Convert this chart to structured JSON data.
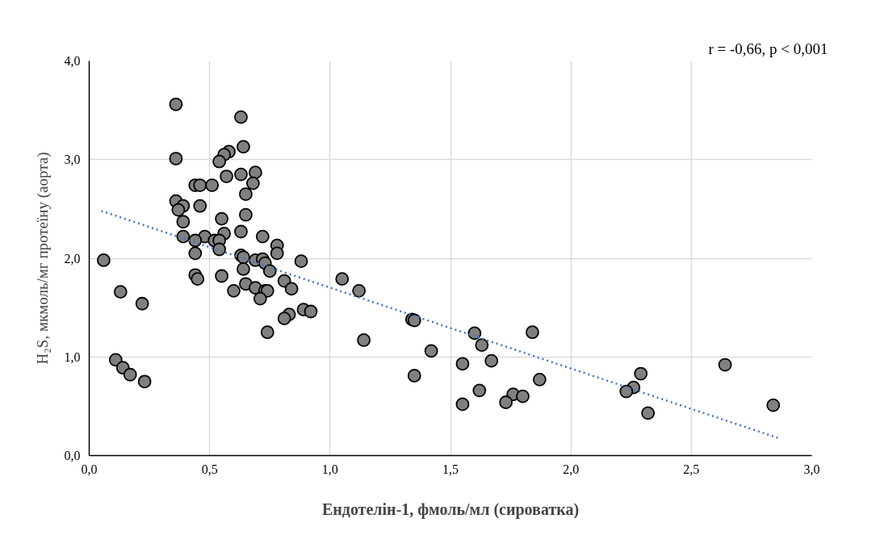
{
  "chart_data": {
    "type": "scatter",
    "xlabel": "Ендотелін-1, фмоль/мл (сироватка)",
    "ylabel": "H₂S, мкмоль/мг протеїну (аорта)",
    "annotations": [
      "r = -0,66, p < 0,001"
    ],
    "xlim": [
      0,
      3
    ],
    "ylim": [
      0,
      4
    ],
    "xticks": [
      {
        "value": 0,
        "label": "0,0"
      },
      {
        "value": 0.5,
        "label": "0,5"
      },
      {
        "value": 1,
        "label": "1,0"
      },
      {
        "value": 1.5,
        "label": "1,5"
      },
      {
        "value": 2,
        "label": "2,0"
      },
      {
        "value": 2.5,
        "label": "2,5"
      },
      {
        "value": 3,
        "label": "3,0"
      }
    ],
    "yticks": [
      {
        "value": 0,
        "label": "0,0"
      },
      {
        "value": 1,
        "label": "1,0"
      },
      {
        "value": 2,
        "label": "2,0"
      },
      {
        "value": 3,
        "label": "3,0"
      },
      {
        "value": 4,
        "label": "4,0"
      }
    ],
    "grid": true,
    "series": [
      {
        "color": "#808080",
        "marker": "circle",
        "x": [
          0.36,
          0.63,
          0.64,
          0.36,
          0.58,
          0.56,
          0.54,
          0.57,
          0.63,
          0.69,
          0.68,
          0.44,
          0.46,
          0.51,
          0.65,
          0.36,
          0.39,
          0.37,
          0.46,
          0.65,
          0.55,
          0.39,
          0.56,
          0.63,
          0.39,
          0.48,
          0.72,
          0.44,
          0.52,
          0.54,
          0.78,
          0.78,
          0.44,
          0.54,
          0.06,
          0.63,
          0.64,
          0.69,
          0.72,
          0.73,
          0.88,
          0.64,
          0.75,
          0.44,
          0.45,
          0.55,
          0.81,
          0.84,
          0.65,
          0.69,
          0.6,
          0.73,
          0.74,
          0.71,
          0.13,
          0.22,
          0.89,
          0.92,
          0.83,
          0.81,
          0.74,
          0.11,
          0.14,
          0.17,
          0.23,
          1.05,
          1.12,
          1.34,
          1.35,
          1.14,
          1.42,
          1.35,
          1.6,
          1.84,
          1.63,
          1.67,
          1.55,
          1.87,
          1.62,
          1.76,
          1.8,
          1.55,
          1.73,
          2.29,
          2.26,
          2.23,
          2.32,
          2.64,
          2.84
        ],
        "values": [
          3.56,
          3.43,
          3.13,
          3.01,
          3.08,
          3.05,
          2.98,
          2.83,
          2.85,
          2.87,
          2.76,
          2.74,
          2.74,
          2.74,
          2.65,
          2.58,
          2.53,
          2.49,
          2.53,
          2.44,
          2.4,
          2.37,
          2.25,
          2.27,
          2.22,
          2.22,
          2.22,
          2.18,
          2.18,
          2.18,
          2.13,
          2.05,
          2.05,
          2.09,
          1.98,
          2.03,
          2.01,
          1.98,
          1.99,
          1.95,
          1.97,
          1.89,
          1.87,
          1.83,
          1.79,
          1.82,
          1.77,
          1.69,
          1.74,
          1.7,
          1.67,
          1.67,
          1.67,
          1.59,
          1.66,
          1.54,
          1.48,
          1.46,
          1.43,
          1.39,
          1.25,
          0.97,
          0.89,
          0.82,
          0.75,
          1.79,
          1.67,
          1.38,
          1.37,
          1.17,
          1.06,
          0.81,
          1.24,
          1.25,
          1.12,
          0.96,
          0.93,
          0.77,
          0.66,
          0.62,
          0.6,
          0.52,
          0.54,
          0.83,
          0.69,
          0.65,
          0.43,
          0.92,
          0.51
        ]
      },
      {
        "type": "line",
        "color": "#4472c4",
        "line_style": "dotted",
        "marker": "none",
        "x": [
          0.05,
          2.87
        ],
        "values": [
          2.48,
          0.17
        ]
      }
    ]
  }
}
